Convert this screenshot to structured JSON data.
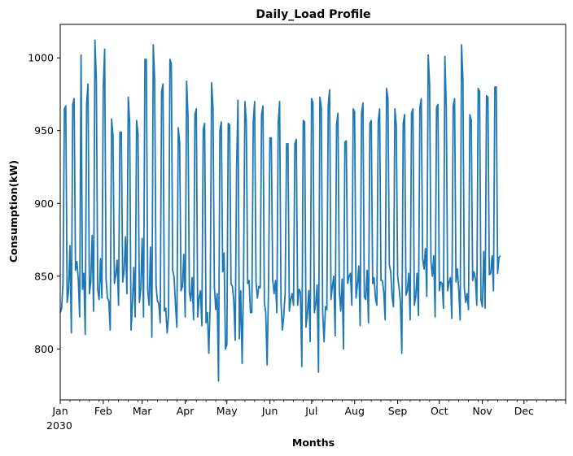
{
  "chart_data": {
    "type": "line",
    "title": "Daily_Load Profile",
    "xlabel": "Months",
    "ylabel": "Consumption(kW)",
    "year_label": "2030",
    "x_tick_labels": [
      "Jan",
      "Feb",
      "Mar",
      "Apr",
      "May",
      "Jun",
      "Jul",
      "Aug",
      "Sep",
      "Oct",
      "Nov",
      "Dec"
    ],
    "x_range": [
      "2030-01-01",
      "2030-12-31"
    ],
    "y_ticks": [
      800,
      850,
      900,
      950,
      1000
    ],
    "ylim": [
      765,
      1023
    ],
    "grid": false,
    "legend": "none",
    "line_color": "#1f77b4",
    "series": [
      {
        "values": [
          825,
          828,
          845,
          965,
          967,
          832,
          840,
          871,
          811,
          968,
          972,
          854,
          860,
          848,
          822,
          1002,
          841,
          852,
          810,
          968,
          982,
          838,
          846,
          878,
          826,
          1012,
          985,
          841,
          834,
          862,
          835,
          980,
          1006,
          848,
          835,
          833,
          813,
          958,
          946,
          845,
          851,
          861,
          830,
          949,
          949,
          846,
          854,
          877,
          838,
          973,
          956,
          813,
          831,
          856,
          822,
          957,
          948,
          832,
          841,
          876,
          822,
          999,
          999,
          840,
          830,
          870,
          808,
          1009,
          985,
          844,
          833,
          831,
          818,
          977,
          982,
          826,
          828,
          811,
          823,
          999,
          996,
          854,
          849,
          830,
          815,
          952,
          942,
          840,
          843,
          865,
          822,
          984,
          960,
          839,
          833,
          849,
          820,
          961,
          965,
          822,
          835,
          840,
          816,
          951,
          955,
          818,
          825,
          797,
          831,
          983,
          966,
          843,
          827,
          838,
          778,
          950,
          956,
          853,
          866,
          800,
          803,
          955,
          954,
          845,
          843,
          833,
          806,
          924,
          971,
          807,
          840,
          790,
          845,
          970,
          956,
          845,
          847,
          825,
          825,
          956,
          970,
          846,
          835,
          843,
          842,
          961,
          967,
          832,
          825,
          789,
          842,
          945,
          945,
          848,
          838,
          847,
          825,
          955,
          970,
          832,
          813,
          823,
          839,
          941,
          941,
          826,
          834,
          838,
          830,
          941,
          944,
          830,
          841,
          839,
          788,
          957,
          956,
          815,
          825,
          840,
          805,
          972,
          969,
          825,
          831,
          844,
          784,
          973,
          966,
          825,
          805,
          829,
          827,
          967,
          978,
          834,
          843,
          850,
          809,
          954,
          962,
          840,
          826,
          848,
          800,
          942,
          943,
          845,
          850,
          852,
          830,
          965,
          963,
          835,
          844,
          857,
          816,
          962,
          969,
          836,
          834,
          854,
          818,
          955,
          957,
          845,
          849,
          835,
          830,
          956,
          965,
          847,
          847,
          839,
          820,
          979,
          972,
          858,
          853,
          836,
          829,
          965,
          954,
          850,
          842,
          832,
          797,
          955,
          961,
          837,
          840,
          852,
          820,
          962,
          965,
          830,
          836,
          852,
          823,
          966,
          972,
          862,
          855,
          869,
          836,
          1002,
          982,
          860,
          850,
          864,
          822,
          966,
          968,
          840,
          846,
          845,
          828,
          1001,
          967,
          840,
          846,
          849,
          821,
          967,
          972,
          846,
          855,
          840,
          820,
          1009,
          985,
          842,
          832,
          838,
          827,
          961,
          957,
          847,
          853,
          848,
          830,
          979,
          977,
          834,
          829,
          867,
          828,
          974,
          973,
          851,
          852,
          864,
          840,
          980,
          980,
          852,
          863,
          864
        ]
      }
    ]
  }
}
